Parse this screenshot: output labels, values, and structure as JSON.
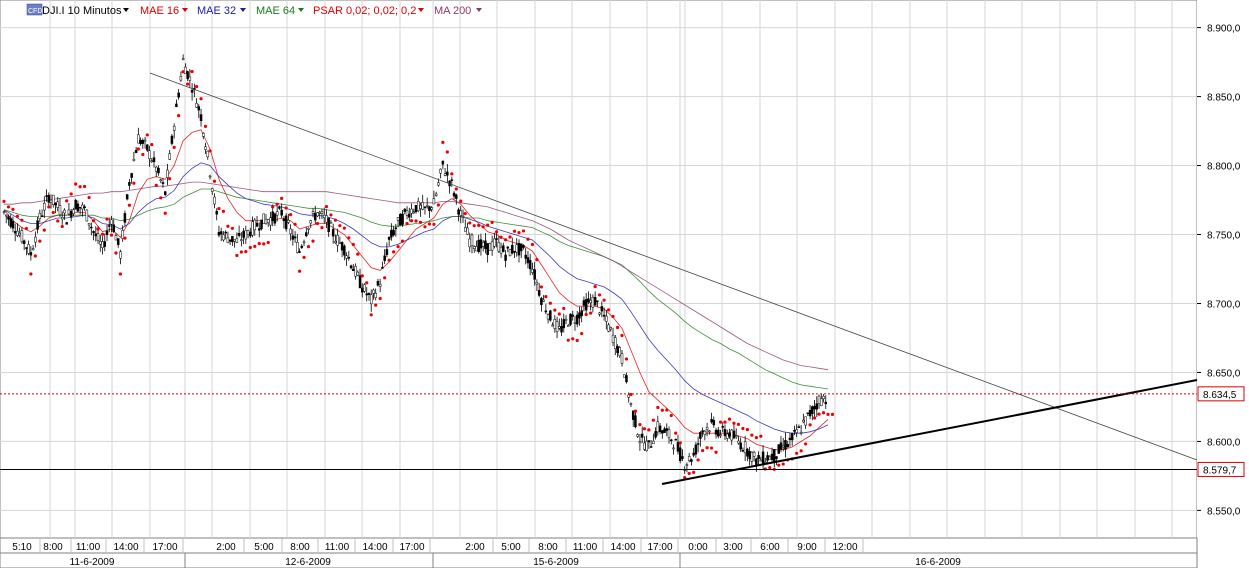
{
  "legend": [
    {
      "label": "DJI.I 10 Minutos",
      "color": "#000000",
      "badge": "CFD"
    },
    {
      "label": "MAE 16",
      "color": "#dd0000"
    },
    {
      "label": "MAE 32",
      "color": "#1a1aaa"
    },
    {
      "label": "MAE 64",
      "color": "#1a7a1a"
    },
    {
      "label": "PSAR 0,02; 0,02; 0,2",
      "color": "#dd0000"
    },
    {
      "label": "MA 200",
      "color": "#8a3a6a"
    }
  ],
  "chart_data": {
    "type": "candlestick",
    "instrument": "DJI.I",
    "ylim": [
      8530,
      8920
    ],
    "y_ticks": [
      "8.550,0",
      "8.600,0",
      "8.650,0",
      "8.700,0",
      "8.750,0",
      "8.800,0",
      "8.850,0",
      "8.900,0"
    ],
    "y_tick_values": [
      8550,
      8600,
      8650,
      8700,
      8750,
      8800,
      8850,
      8900
    ],
    "x_time_labels": [
      "5:10",
      "8:00",
      "11:00",
      "14:00",
      "17:00",
      "2:00",
      "5:00",
      "8:00",
      "11:00",
      "14:00",
      "17:00",
      "2:00",
      "5:00",
      "8:00",
      "11:00",
      "14:00",
      "17:00",
      "0:00",
      "3:00",
      "6:00",
      "9:00",
      "12:00"
    ],
    "date_labels": [
      "11-6-2009",
      "12-6-2009",
      "15-6-2009",
      "16-6-2009"
    ],
    "price_labels": [
      {
        "text": "8.634,5",
        "value": 8634.5,
        "color": "#dd0000"
      },
      {
        "text": "8.579,7",
        "value": 8579.7,
        "color": "#dd0000"
      }
    ],
    "approx_closes": [
      8766,
      8758,
      8748,
      8736,
      8762,
      8778,
      8770,
      8762,
      8772,
      8768,
      8752,
      8740,
      8762,
      8736,
      8788,
      8820,
      8812,
      8798,
      8780,
      8830,
      8876,
      8858,
      8836,
      8796,
      8752,
      8748,
      8745,
      8750,
      8756,
      8760,
      8762,
      8766,
      8752,
      8738,
      8758,
      8766,
      8760,
      8748,
      8740,
      8726,
      8712,
      8702,
      8716,
      8746,
      8758,
      8766,
      8770,
      8768,
      8772,
      8800,
      8786,
      8764,
      8746,
      8742,
      8740,
      8744,
      8736,
      8740,
      8738,
      8726,
      8704,
      8690,
      8680,
      8688,
      8690,
      8700,
      8702,
      8690,
      8676,
      8660,
      8626,
      8602,
      8596,
      8610,
      8606,
      8598,
      8584,
      8590,
      8608,
      8612,
      8606,
      8606,
      8600,
      8594,
      8586,
      8588,
      8590,
      8596,
      8602,
      8610,
      8620,
      8630,
      8632
    ],
    "indicators": {
      "mae16": [
        8768,
        8760,
        8755,
        8752,
        8756,
        8762,
        8764,
        8764,
        8766,
        8766,
        8760,
        8752,
        8754,
        8748,
        8760,
        8780,
        8790,
        8792,
        8790,
        8800,
        8818,
        8824,
        8826,
        8812,
        8790,
        8776,
        8766,
        8760,
        8760,
        8760,
        8760,
        8762,
        8760,
        8754,
        8756,
        8758,
        8758,
        8754,
        8750,
        8742,
        8734,
        8726,
        8724,
        8730,
        8738,
        8746,
        8754,
        8758,
        8762,
        8772,
        8776,
        8772,
        8764,
        8758,
        8752,
        8750,
        8746,
        8744,
        8742,
        8738,
        8728,
        8718,
        8708,
        8702,
        8698,
        8698,
        8698,
        8696,
        8690,
        8682,
        8666,
        8650,
        8636,
        8630,
        8624,
        8618,
        8610,
        8606,
        8606,
        8606,
        8606,
        8606,
        8604,
        8602,
        8598,
        8596,
        8594,
        8594,
        8596,
        8600,
        8604,
        8610,
        8616
      ],
      "mae32": [
        8768,
        8764,
        8760,
        8758,
        8758,
        8760,
        8762,
        8762,
        8763,
        8764,
        8762,
        8758,
        8757,
        8754,
        8758,
        8766,
        8772,
        8776,
        8777,
        8782,
        8792,
        8798,
        8802,
        8800,
        8792,
        8786,
        8780,
        8776,
        8774,
        8772,
        8771,
        8770,
        8768,
        8765,
        8764,
        8764,
        8763,
        8761,
        8758,
        8754,
        8749,
        8744,
        8741,
        8741,
        8743,
        8746,
        8749,
        8752,
        8754,
        8760,
        8763,
        8763,
        8761,
        8759,
        8756,
        8754,
        8752,
        8750,
        8748,
        8746,
        8740,
        8734,
        8727,
        8722,
        8718,
        8716,
        8714,
        8712,
        8708,
        8703,
        8694,
        8684,
        8674,
        8666,
        8659,
        8652,
        8644,
        8638,
        8634,
        8631,
        8628,
        8625,
        8622,
        8619,
        8615,
        8612,
        8609,
        8607,
        8606,
        8606,
        8607,
        8609,
        8612
      ],
      "mae64": [
        8768,
        8766,
        8764,
        8763,
        8763,
        8763,
        8764,
        8764,
        8764,
        8764,
        8764,
        8762,
        8762,
        8760,
        8761,
        8764,
        8767,
        8769,
        8770,
        8772,
        8777,
        8780,
        8783,
        8783,
        8781,
        8779,
        8777,
        8776,
        8775,
        8774,
        8773,
        8772,
        8771,
        8770,
        8769,
        8769,
        8768,
        8767,
        8766,
        8764,
        8762,
        8759,
        8757,
        8756,
        8756,
        8757,
        8758,
        8759,
        8760,
        8762,
        8763,
        8763,
        8762,
        8762,
        8760,
        8759,
        8758,
        8757,
        8756,
        8755,
        8752,
        8749,
        8745,
        8742,
        8740,
        8738,
        8736,
        8734,
        8731,
        8728,
        8722,
        8716,
        8709,
        8703,
        8698,
        8693,
        8687,
        8682,
        8678,
        8674,
        8671,
        8667,
        8664,
        8660,
        8656,
        8652,
        8649,
        8646,
        8643,
        8641,
        8640,
        8639,
        8638
      ],
      "ma200": [
        8772,
        8772,
        8773,
        8773,
        8774,
        8775,
        8776,
        8777,
        8778,
        8779,
        8780,
        8780,
        8781,
        8781,
        8782,
        8783,
        8784,
        8785,
        8785,
        8786,
        8787,
        8788,
        8788,
        8787,
        8786,
        8785,
        8784,
        8783,
        8782,
        8781,
        8781,
        8781,
        8781,
        8781,
        8781,
        8781,
        8781,
        8780,
        8779,
        8778,
        8777,
        8776,
        8775,
        8774,
        8773,
        8773,
        8773,
        8773,
        8773,
        8774,
        8774,
        8773,
        8772,
        8771,
        8770,
        8768,
        8766,
        8764,
        8762,
        8760,
        8757,
        8754,
        8750,
        8746,
        8743,
        8740,
        8737,
        8734,
        8731,
        8727,
        8723,
        8719,
        8715,
        8711,
        8707,
        8703,
        8699,
        8695,
        8691,
        8687,
        8683,
        8679,
        8675,
        8671,
        8668,
        8665,
        8662,
        8659,
        8657,
        8655,
        8654,
        8653,
        8652
      ]
    },
    "horizontal_lines": [
      {
        "value": 8634.5,
        "style": "dotted",
        "color": "#dd0000"
      },
      {
        "value": 8579.7,
        "style": "solid",
        "color": "#000000"
      }
    ]
  }
}
